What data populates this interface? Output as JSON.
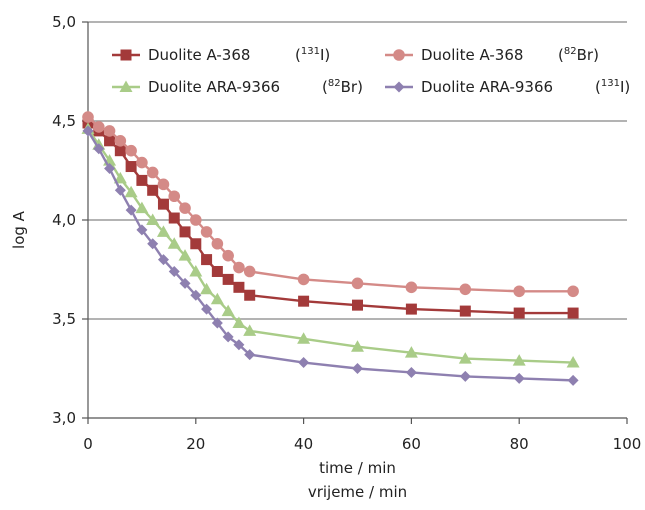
{
  "chart_data": {
    "type": "line",
    "xlabel": "time / min",
    "xlabel_local": "vrijeme / min",
    "ylabel": "log A",
    "xlim": [
      0,
      100
    ],
    "ylim": [
      3.0,
      5.0
    ],
    "x_ticks": [
      "0",
      "20",
      "40",
      "60",
      "80",
      "100"
    ],
    "y_ticks": [
      "3,0",
      "3,5",
      "4,0",
      "4,5",
      "5,0"
    ],
    "grid": "horizontal",
    "legend_position": "top",
    "series": [
      {
        "name": "Duolite A-368",
        "isotope_mass": "131",
        "isotope_element": "I",
        "color": "#a33a3a",
        "marker": "square",
        "x": [
          0,
          2,
          4,
          6,
          8,
          10,
          12,
          14,
          16,
          18,
          20,
          22,
          24,
          26,
          28,
          30,
          40,
          50,
          60,
          70,
          80,
          90
        ],
        "y": [
          4.49,
          4.45,
          4.4,
          4.35,
          4.27,
          4.2,
          4.15,
          4.08,
          4.01,
          3.94,
          3.88,
          3.8,
          3.74,
          3.7,
          3.66,
          3.62,
          3.59,
          3.57,
          3.55,
          3.54,
          3.53,
          3.53
        ]
      },
      {
        "name": "Duolite A-368",
        "isotope_mass": "82",
        "isotope_element": "Br",
        "color": "#d48a87",
        "marker": "circle",
        "x": [
          0,
          2,
          4,
          6,
          8,
          10,
          12,
          14,
          16,
          18,
          20,
          22,
          24,
          26,
          28,
          30,
          40,
          50,
          60,
          70,
          80,
          90
        ],
        "y": [
          4.52,
          4.47,
          4.45,
          4.4,
          4.35,
          4.29,
          4.24,
          4.18,
          4.12,
          4.06,
          4.0,
          3.94,
          3.88,
          3.82,
          3.76,
          3.74,
          3.7,
          3.68,
          3.66,
          3.65,
          3.64,
          3.64
        ]
      },
      {
        "name": "Duolite ARA-9366",
        "isotope_mass": "82",
        "isotope_element": "Br",
        "color": "#a9cc88",
        "marker": "triangle",
        "x": [
          0,
          2,
          4,
          6,
          8,
          10,
          12,
          14,
          16,
          18,
          20,
          22,
          24,
          26,
          28,
          30,
          40,
          50,
          60,
          70,
          80,
          90
        ],
        "y": [
          4.46,
          4.38,
          4.3,
          4.21,
          4.14,
          4.06,
          4.0,
          3.94,
          3.88,
          3.82,
          3.74,
          3.65,
          3.6,
          3.54,
          3.48,
          3.44,
          3.4,
          3.36,
          3.33,
          3.3,
          3.29,
          3.28
        ]
      },
      {
        "name": "Duolite ARA-9366",
        "isotope_mass": "131",
        "isotope_element": "I",
        "color": "#8e80b0",
        "marker": "diamond",
        "x": [
          0,
          2,
          4,
          6,
          8,
          10,
          12,
          14,
          16,
          18,
          20,
          22,
          24,
          26,
          28,
          30,
          40,
          50,
          60,
          70,
          80,
          90
        ],
        "y": [
          4.45,
          4.36,
          4.26,
          4.15,
          4.05,
          3.95,
          3.88,
          3.8,
          3.74,
          3.68,
          3.62,
          3.55,
          3.48,
          3.41,
          3.37,
          3.32,
          3.28,
          3.25,
          3.23,
          3.21,
          3.2,
          3.19
        ]
      }
    ]
  }
}
